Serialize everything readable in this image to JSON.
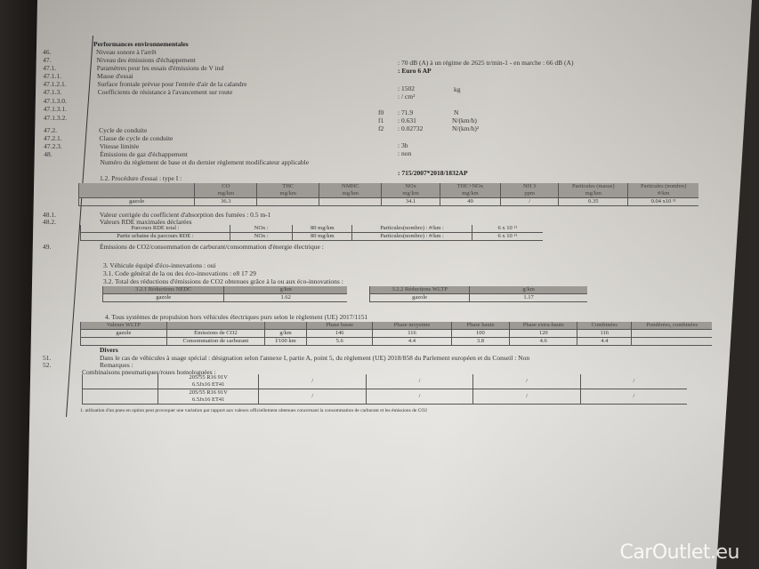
{
  "section47": {
    "title": "Performances environnementales",
    "lines": [
      {
        "num": "46.",
        "label": "Niveau sonore à l'arrêt"
      },
      {
        "num": "47.",
        "label": "Niveau des émissions d'échappement"
      },
      {
        "num": "47.1.",
        "label": "Paramètres pour les essais d'émissions de V ind"
      },
      {
        "num": "47.1.1.",
        "label": "Masse d'essai"
      },
      {
        "num": "47.1.2.1.",
        "label": "Surface frontale prévue pour l'entrée d'air de la calandre"
      },
      {
        "num": "47.1.3.",
        "label": "Coefficients de résistance à l'avancement sur route"
      },
      {
        "num": "47.1.3.0.",
        "label": ""
      },
      {
        "num": "47.1.3.1.",
        "label": ""
      },
      {
        "num": "47.1.3.2.",
        "label": ""
      },
      {
        "num": "47.2.",
        "label": "Cycle de conduite"
      },
      {
        "num": "47.2.1.",
        "label": "Classe de cycle de conduite"
      },
      {
        "num": "47.2.3.",
        "label": "Vitesse limitée"
      },
      {
        "num": "48.",
        "label": "Émissions de gaz d'échappement"
      },
      {
        "num": "",
        "label": "Numéro du règlement de base et du dernier règlement modificateur applicable"
      }
    ],
    "values": [
      ": 70 dB (A)   à un régime de 2625 tr/min-1 - en marche :   66 dB (A)",
      ": Euro 6 AP",
      ": 1502",
      "kg",
      ": / cm²",
      "f0",
      ": 71.9",
      "N",
      "f1",
      ": 0.631",
      "N/(km/h)",
      "f2",
      ": 0.02732",
      "N/(km/h)²",
      ": 3b",
      ": non",
      ": 715/2007*2018/1832AP"
    ],
    "procedure": "1.2. Procédure d'essai : type I :"
  },
  "emissions_table": {
    "headers": [
      [
        "",
        ""
      ],
      [
        "CO",
        "mg/km"
      ],
      [
        "THC",
        "mg/km"
      ],
      [
        "NMHC",
        "mg/km"
      ],
      [
        "NOx",
        "mg/km"
      ],
      [
        "THC+NOx",
        "mg/km"
      ],
      [
        "NH 3",
        "ppm"
      ],
      [
        "Particules (masse)",
        "mg/km"
      ],
      [
        "Particules (nombre)",
        "#/km"
      ]
    ],
    "row": [
      "gazole",
      "36.3",
      "",
      "",
      "34.1",
      "49",
      "/",
      "0.35",
      "0.04 x10 ¹¹"
    ]
  },
  "rde": {
    "l481": {
      "num": "48.1.",
      "label": "Valeur corrigée du coefficient d'absorption des fumées : 0.5 m-1"
    },
    "l482": {
      "num": "48.2.",
      "label": "Valeurs RDE maximales déclarées"
    },
    "rows": [
      [
        "Parcours RDE total :",
        "NOx :",
        "80 mg/km",
        "Particules(nombre) : #/km :",
        "6 x 10 ¹¹"
      ],
      [
        "Partie urbaine du parcours RDE        :",
        "NOx :",
        "80 mg/km",
        "Particules(nombre) : #/km :",
        "6 x 10 ¹¹"
      ]
    ],
    "l49": {
      "num": "49.",
      "label": "Émissions de CO2/consommation de carburant/consommation d'énergie électrique :"
    }
  },
  "eco": {
    "l3": "3. Véhicule équipé d'éco-innovations : oui",
    "l31": "3.1. Code général de la ou des éco-innovations : e8 17 29",
    "l32": "3.2. Total des réductions d'émissions de CO2 obtenues grâce à la ou aux éco-innovations :",
    "nedc": {
      "headers": [
        "3.2.1 Réductions NEDC",
        "g/km"
      ],
      "row": [
        "gazole",
        "1.62"
      ]
    },
    "wltp": {
      "headers": [
        "3.2.2 Réductions WLTP",
        "g/km"
      ],
      "row": [
        "gazole",
        "1.17"
      ]
    }
  },
  "wltp_values": {
    "title": "4. Tous systèmes de propulsion hors véhicules électriques purs selon le règlement (UE) 2017/1151",
    "headers": [
      "Valeurs WLTP",
      "",
      "",
      "Phase basse",
      "Phase moyenne",
      "Phase haute",
      "Phase extra-haute",
      "Combinées",
      "Pondérées, combinées"
    ],
    "fuel": "gazole",
    "rows": [
      [
        "Émissions de CO2",
        "g/km",
        "146",
        "116",
        "100",
        "120",
        "116",
        ""
      ],
      [
        "Consommation de carburant",
        "l/100 km",
        "5.6",
        "4.4",
        "3.8",
        "4.6",
        "4.4",
        ""
      ]
    ]
  },
  "divers": {
    "title": "Divers",
    "l51": {
      "num": "51.",
      "label": "Dans le cas de véhicules à usage spécial : désignation selon l'annexe I, partie A, point 5, du règlement (UE) 2018/858 du Parlement européen et du Conseil : Non"
    },
    "l52": {
      "num": "52.",
      "label": "Remarques :"
    },
    "combos": "Combinaisons pneumatiques/roues homologuées :",
    "tyres": [
      [
        "205/55 R16 91V",
        "6.5Jx16 ET41"
      ],
      [
        "205/55 R16 91V",
        "6.5Jx16 ET41"
      ]
    ],
    "slash": "/"
  },
  "footnote": "1. utilisation d'un pneu en option peut provoquer une variation par rapport aux valeurs officiellement obtenues concernant la consommation de carburant et les émissions de CO2",
  "watermark": "CarOutlet.eu"
}
